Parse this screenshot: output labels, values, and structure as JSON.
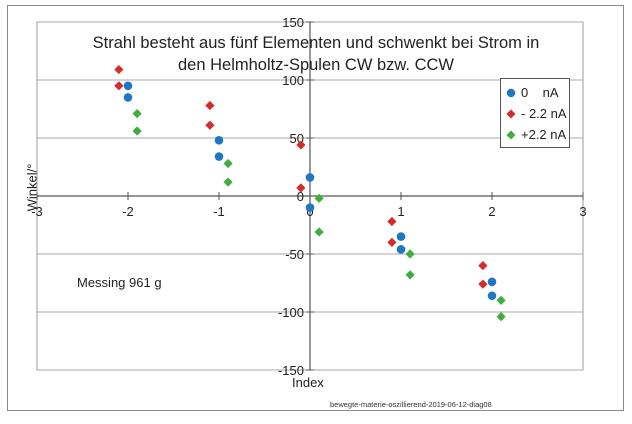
{
  "chart_data": {
    "type": "scatter",
    "title_lines": [
      "Strahl besteht aus fünf Elementen und schwenkt bei Strom in",
      "den Helmholtz-Spulen CW bzw. CCW"
    ],
    "xlabel": "Index",
    "ylabel": "Winkel/°",
    "xlim": [
      -3,
      3
    ],
    "ylim": [
      -150,
      150
    ],
    "x_ticks": [
      -3,
      -2,
      -1,
      0,
      1,
      2,
      3
    ],
    "y_ticks": [
      150,
      100,
      50,
      0,
      -50,
      -100,
      -150
    ],
    "x_tick_labels": [
      "-3",
      "-2",
      "-1",
      "0",
      "1",
      "2",
      "3"
    ],
    "y_tick_labels": [
      "150",
      "100",
      "50",
      "0",
      "-50",
      "-100",
      "-150"
    ],
    "grid": "horizontal",
    "legend_position": "top-right",
    "annotation": "Messing 961 g",
    "source_note": "bewegte-materie-oszillierend-2019-06-12-diag08",
    "series": [
      {
        "name": "0    nA",
        "marker": "circle",
        "color": "#1f77c4",
        "points": [
          [
            -2,
            95
          ],
          [
            -2,
            85
          ],
          [
            -1,
            48
          ],
          [
            -1,
            34
          ],
          [
            0,
            16
          ],
          [
            0,
            -10
          ],
          [
            1,
            -35
          ],
          [
            1,
            -46
          ],
          [
            2,
            -74
          ],
          [
            2,
            -86
          ]
        ]
      },
      {
        "name": "- 2.2 nA",
        "marker": "diamond",
        "color": "#d62b2b",
        "points": [
          [
            -2.1,
            109
          ],
          [
            -2.1,
            95
          ],
          [
            -1.1,
            78
          ],
          [
            -1.1,
            61
          ],
          [
            -0.1,
            44
          ],
          [
            -0.1,
            7
          ],
          [
            0.9,
            -22
          ],
          [
            0.9,
            -40
          ],
          [
            1.9,
            -60
          ],
          [
            1.9,
            -76
          ]
        ]
      },
      {
        "name": "+2.2 nA",
        "marker": "diamond",
        "color": "#3fae3f",
        "points": [
          [
            -1.9,
            71
          ],
          [
            -1.9,
            56
          ],
          [
            -0.9,
            28
          ],
          [
            -0.9,
            12
          ],
          [
            0.1,
            -2
          ],
          [
            0.1,
            -31
          ],
          [
            1.1,
            -50
          ],
          [
            1.1,
            -68
          ],
          [
            2.1,
            -90
          ],
          [
            2.1,
            -104
          ]
        ]
      }
    ]
  }
}
